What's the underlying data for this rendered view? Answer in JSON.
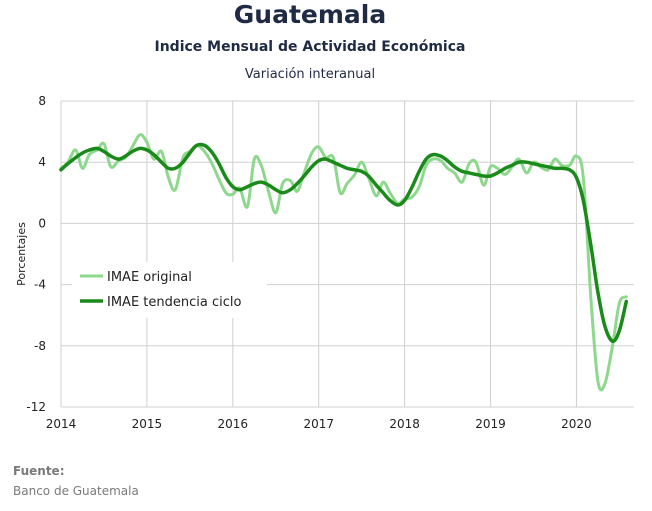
{
  "header": {
    "title": "Guatemala",
    "subtitle": "Indice Mensual de  Actividad Económica",
    "subsubtitle": "Variación interanual"
  },
  "source": {
    "label": "Fuente:",
    "value": "Banco de Guatemala"
  },
  "chart_data": {
    "type": "line",
    "title": "Guatemala",
    "subtitle": "Indice Mensual de  Actividad Económica",
    "xlabel": "",
    "ylabel": "Porcentajes",
    "xlim": [
      2014,
      2020.67
    ],
    "ylim": [
      -12,
      8
    ],
    "y_ticks": [
      -12,
      -8,
      -4,
      0,
      4,
      8
    ],
    "y_tick_labels": [
      "-12",
      "-8",
      "-4",
      "0",
      "4",
      "8"
    ],
    "x_ticks": [
      2014,
      2015,
      2016,
      2017,
      2018,
      2019,
      2020
    ],
    "x_tick_labels": [
      "2014",
      "2015",
      "2016",
      "2017",
      "2018",
      "2019",
      "2020"
    ],
    "grid": true,
    "legend_position": "center-left",
    "series": [
      {
        "name": "IMAE original",
        "color": "#8ed88e",
        "x": [
          2014.0,
          2014.08,
          2014.17,
          2014.25,
          2014.33,
          2014.42,
          2014.5,
          2014.58,
          2014.67,
          2014.75,
          2014.83,
          2014.92,
          2015.0,
          2015.08,
          2015.17,
          2015.25,
          2015.33,
          2015.42,
          2015.5,
          2015.58,
          2015.67,
          2015.75,
          2015.83,
          2015.92,
          2016.0,
          2016.08,
          2016.17,
          2016.25,
          2016.33,
          2016.42,
          2016.5,
          2016.58,
          2016.67,
          2016.75,
          2016.83,
          2016.92,
          2017.0,
          2017.08,
          2017.17,
          2017.25,
          2017.33,
          2017.42,
          2017.5,
          2017.58,
          2017.67,
          2017.75,
          2017.83,
          2017.92,
          2018.0,
          2018.08,
          2018.17,
          2018.25,
          2018.33,
          2018.42,
          2018.5,
          2018.58,
          2018.67,
          2018.75,
          2018.83,
          2018.92,
          2019.0,
          2019.08,
          2019.17,
          2019.25,
          2019.33,
          2019.42,
          2019.5,
          2019.58,
          2019.67,
          2019.75,
          2019.83,
          2019.92,
          2020.0,
          2020.08,
          2020.17,
          2020.25,
          2020.33,
          2020.42,
          2020.5,
          2020.58
        ],
        "values": [
          3.6,
          4.0,
          4.8,
          3.6,
          4.5,
          4.8,
          5.2,
          3.7,
          4.1,
          4.3,
          5.0,
          5.8,
          5.3,
          4.2,
          4.7,
          3.0,
          2.2,
          4.3,
          4.7,
          5.1,
          4.7,
          4.0,
          3.0,
          2.0,
          1.9,
          2.3,
          1.1,
          4.2,
          3.8,
          2.0,
          0.7,
          2.6,
          2.8,
          2.1,
          3.3,
          4.6,
          5.0,
          4.3,
          4.3,
          2.0,
          2.6,
          3.2,
          4.0,
          3.0,
          1.8,
          2.7,
          2.0,
          1.3,
          1.6,
          1.7,
          2.4,
          3.8,
          4.2,
          4.1,
          3.6,
          3.3,
          2.7,
          3.9,
          4.0,
          2.5,
          3.7,
          3.6,
          3.2,
          3.7,
          4.2,
          3.3,
          4.0,
          3.7,
          3.5,
          4.2,
          3.8,
          3.8,
          4.4,
          3.0,
          -5.0,
          -10.3,
          -10.5,
          -8.0,
          -5.2,
          -4.8
        ]
      },
      {
        "name": "IMAE tendencia ciclo",
        "color": "#1a8a1a",
        "x": [
          2014.0,
          2014.08,
          2014.17,
          2014.25,
          2014.33,
          2014.42,
          2014.5,
          2014.58,
          2014.67,
          2014.75,
          2014.83,
          2014.92,
          2015.0,
          2015.08,
          2015.17,
          2015.25,
          2015.33,
          2015.42,
          2015.5,
          2015.58,
          2015.67,
          2015.75,
          2015.83,
          2015.92,
          2016.0,
          2016.08,
          2016.17,
          2016.25,
          2016.33,
          2016.42,
          2016.5,
          2016.58,
          2016.67,
          2016.75,
          2016.83,
          2016.92,
          2017.0,
          2017.08,
          2017.17,
          2017.25,
          2017.33,
          2017.42,
          2017.5,
          2017.58,
          2017.67,
          2017.75,
          2017.83,
          2017.92,
          2018.0,
          2018.08,
          2018.17,
          2018.25,
          2018.33,
          2018.42,
          2018.5,
          2018.58,
          2018.67,
          2018.75,
          2018.83,
          2018.92,
          2019.0,
          2019.08,
          2019.17,
          2019.25,
          2019.33,
          2019.42,
          2019.5,
          2019.58,
          2019.67,
          2019.75,
          2019.83,
          2019.92,
          2020.0,
          2020.08,
          2020.17,
          2020.25,
          2020.33,
          2020.42,
          2020.5,
          2020.58
        ],
        "values": [
          3.5,
          3.9,
          4.3,
          4.6,
          4.8,
          4.9,
          4.7,
          4.4,
          4.2,
          4.4,
          4.7,
          4.9,
          4.8,
          4.5,
          4.0,
          3.6,
          3.6,
          4.0,
          4.6,
          5.1,
          5.1,
          4.7,
          4.0,
          3.0,
          2.4,
          2.2,
          2.4,
          2.6,
          2.7,
          2.5,
          2.2,
          2.0,
          2.2,
          2.6,
          3.1,
          3.7,
          4.1,
          4.2,
          4.0,
          3.8,
          3.6,
          3.5,
          3.4,
          3.1,
          2.5,
          2.0,
          1.5,
          1.2,
          1.5,
          2.3,
          3.4,
          4.2,
          4.5,
          4.4,
          4.1,
          3.7,
          3.4,
          3.3,
          3.2,
          3.1,
          3.1,
          3.3,
          3.6,
          3.8,
          4.0,
          4.0,
          3.9,
          3.8,
          3.7,
          3.6,
          3.6,
          3.5,
          3.0,
          1.5,
          -1.5,
          -4.5,
          -6.7,
          -7.7,
          -7.0,
          -5.1
        ]
      }
    ]
  }
}
